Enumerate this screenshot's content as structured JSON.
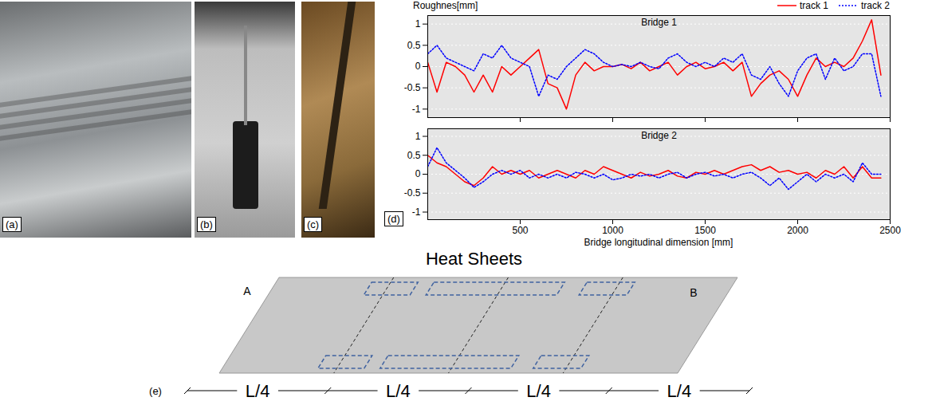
{
  "photos": [
    {
      "label": "(a)"
    },
    {
      "label": "(b)"
    },
    {
      "label": "(c)"
    }
  ],
  "chart_data": [
    {
      "type": "line",
      "panel": "(d)",
      "title": "Bridge 1",
      "y_label": "Roughnes[mm]",
      "legend": "top",
      "grid": true,
      "tick_labels": "y",
      "x": [
        0,
        50,
        100,
        150,
        200,
        250,
        300,
        350,
        400,
        450,
        500,
        550,
        600,
        650,
        700,
        750,
        800,
        850,
        900,
        950,
        1000,
        1050,
        1100,
        1150,
        1200,
        1250,
        1300,
        1350,
        1400,
        1450,
        1500,
        1550,
        1600,
        1650,
        1700,
        1750,
        1800,
        1850,
        1900,
        1950,
        2000,
        2050,
        2100,
        2150,
        2200,
        2250,
        2300,
        2350,
        2400,
        2450
      ],
      "xlim": [
        0,
        2500
      ],
      "xticks": [
        500,
        1000,
        1500,
        2000,
        2500
      ],
      "ylim": [
        -1.2,
        1.2
      ],
      "yticks": [
        -1,
        -0.5,
        0,
        0.5,
        1
      ],
      "series": [
        {
          "name": "track 1",
          "color": "#ff0000",
          "line_style": "solid",
          "values": [
            0.1,
            -0.6,
            0.1,
            0,
            -0.2,
            -0.6,
            -0.2,
            -0.6,
            0,
            -0.2,
            0,
            0.2,
            0.4,
            -0.4,
            -0.5,
            -1.0,
            -0.2,
            0.1,
            -0.1,
            0,
            0,
            0.05,
            -0.05,
            0.1,
            -0.1,
            0,
            0.1,
            -0.2,
            0,
            0.1,
            -0.05,
            0,
            0.1,
            -0.1,
            0.1,
            -0.7,
            -0.4,
            -0.2,
            -0.1,
            -0.3,
            -0.7,
            -0.2,
            0.2,
            0,
            0.1,
            0,
            0.2,
            0.6,
            1.1,
            -0.2
          ]
        },
        {
          "name": "track 2",
          "color": "#0000ff",
          "line_style": "dotted",
          "values": [
            0.3,
            0.5,
            0.2,
            0.1,
            0,
            -0.1,
            0.3,
            0.2,
            0.5,
            0.2,
            0.1,
            0,
            -0.7,
            -0.2,
            -0.3,
            0,
            0.2,
            0.4,
            0.3,
            0.1,
            0,
            0.05,
            0,
            0.1,
            0,
            -0.05,
            0.2,
            0.3,
            0.1,
            0,
            0.1,
            0,
            0.2,
            0.1,
            0.3,
            -0.2,
            -0.3,
            0,
            -0.4,
            -0.7,
            -0.1,
            0.2,
            0.3,
            -0.3,
            0.2,
            -0.1,
            0,
            0.3,
            0.3,
            -0.7
          ]
        }
      ]
    },
    {
      "type": "line",
      "title": "Bridge 2",
      "x_label": "Bridge longitudinal dimension [mm]",
      "grid": true,
      "x": [
        0,
        50,
        100,
        150,
        200,
        250,
        300,
        350,
        400,
        450,
        500,
        550,
        600,
        650,
        700,
        750,
        800,
        850,
        900,
        950,
        1000,
        1050,
        1100,
        1150,
        1200,
        1250,
        1300,
        1350,
        1400,
        1450,
        1500,
        1550,
        1600,
        1650,
        1700,
        1750,
        1800,
        1850,
        1900,
        1950,
        2000,
        2050,
        2100,
        2150,
        2200,
        2250,
        2300,
        2350,
        2400,
        2450
      ],
      "xlim": [
        0,
        2500
      ],
      "xticks": [
        500,
        1000,
        1500,
        2000,
        2500
      ],
      "ylim": [
        -1.2,
        1.2
      ],
      "yticks": [
        -1,
        -0.5,
        0,
        0.5,
        1
      ],
      "series": [
        {
          "name": "track 1",
          "color": "#ff0000",
          "line_style": "solid",
          "values": [
            0.5,
            0.3,
            0.2,
            0,
            -0.2,
            -0.3,
            -0.1,
            0.2,
            0,
            0.1,
            0,
            0.1,
            -0.1,
            0,
            0.1,
            0,
            -0.1,
            0.1,
            0,
            0.2,
            0.1,
            0,
            -0.1,
            0.05,
            -0.05,
            0,
            0.1,
            -0.05,
            -0.1,
            0.05,
            0,
            0.1,
            0,
            0.1,
            0.2,
            0.25,
            0.1,
            0.2,
            0.05,
            0.1,
            0,
            0.05,
            -0.1,
            0.1,
            0,
            0.2,
            -0.1,
            0.2,
            -0.1,
            -0.1
          ]
        },
        {
          "name": "track 2",
          "color": "#0000ff",
          "line_style": "dotted",
          "values": [
            0.2,
            0.7,
            0.3,
            0.1,
            -0.1,
            -0.35,
            -0.2,
            0,
            0.1,
            0,
            0.1,
            -0.1,
            0,
            -0.1,
            0,
            -0.1,
            0.05,
            0,
            -0.1,
            0,
            -0.15,
            -0.1,
            0,
            -0.05,
            0,
            -0.1,
            0,
            0.05,
            -0.1,
            0,
            0.05,
            -0.05,
            0,
            -0.1,
            0,
            0.05,
            -0.1,
            -0.3,
            -0.1,
            -0.4,
            -0.2,
            0,
            -0.2,
            0,
            -0.1,
            0,
            -0.2,
            0.3,
            0,
            0
          ]
        }
      ]
    }
  ],
  "diagram": {
    "label": "(e)",
    "title": "Heat Sheets",
    "corners": [
      "A",
      "B"
    ],
    "segments": [
      "L/4",
      "L/4",
      "L/4",
      "L/4"
    ]
  }
}
